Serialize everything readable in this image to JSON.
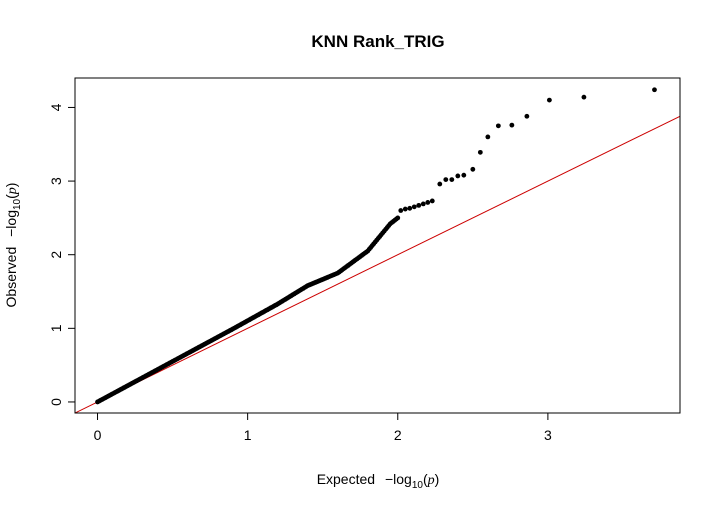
{
  "chart_data": {
    "type": "scatter",
    "title": "KNN Rank_TRIG",
    "xlabel": {
      "prefix": "Expected",
      "expr_minus": "−",
      "expr_log": "log",
      "expr_sub": "10",
      "expr_open": "(",
      "expr_var": "p",
      "expr_close": ")"
    },
    "ylabel": {
      "prefix": "Observed",
      "expr_minus": "−",
      "expr_log": "log",
      "expr_sub": "10",
      "expr_open": "(",
      "expr_var": "p",
      "expr_close": ")"
    },
    "xlim": [
      -0.15,
      3.88
    ],
    "ylim": [
      -0.15,
      4.4
    ],
    "x_ticks": [
      0,
      1,
      2,
      3
    ],
    "y_ticks": [
      0,
      1,
      2,
      3,
      4
    ],
    "x_tick_labels": [
      "0",
      "1",
      "2",
      "3"
    ],
    "y_tick_labels": [
      "0",
      "1",
      "2",
      "3",
      "4"
    ],
    "grid": false,
    "reference_line": {
      "slope": 1,
      "intercept": 0,
      "color": "#cc0000"
    },
    "point_color": "#000000",
    "curve_points": [
      [
        0.0,
        0.0
      ],
      [
        0.3,
        0.33
      ],
      [
        0.6,
        0.66
      ],
      [
        0.9,
        0.99
      ],
      [
        1.2,
        1.33
      ],
      [
        1.4,
        1.58
      ],
      [
        1.6,
        1.75
      ],
      [
        1.8,
        2.05
      ],
      [
        1.95,
        2.42
      ],
      [
        2.0,
        2.5
      ]
    ],
    "sparse_points": [
      [
        2.02,
        2.6
      ],
      [
        2.05,
        2.62
      ],
      [
        2.08,
        2.63
      ],
      [
        2.11,
        2.65
      ],
      [
        2.14,
        2.67
      ],
      [
        2.17,
        2.69
      ],
      [
        2.2,
        2.71
      ],
      [
        2.23,
        2.73
      ],
      [
        2.28,
        2.96
      ],
      [
        2.32,
        3.02
      ],
      [
        2.36,
        3.02
      ],
      [
        2.4,
        3.07
      ],
      [
        2.44,
        3.08
      ],
      [
        2.5,
        3.16
      ],
      [
        2.55,
        3.39
      ],
      [
        2.6,
        3.6
      ],
      [
        2.67,
        3.75
      ],
      [
        2.76,
        3.76
      ],
      [
        2.86,
        3.88
      ],
      [
        3.01,
        4.1
      ],
      [
        3.24,
        4.14
      ],
      [
        3.71,
        4.24
      ]
    ]
  }
}
